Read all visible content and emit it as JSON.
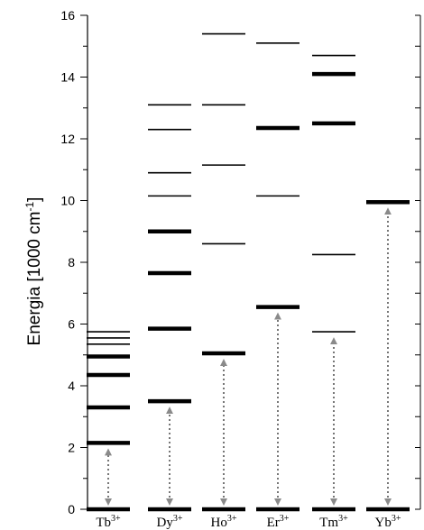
{
  "chart_data": {
    "type": "energy-level-diagram",
    "ylabel": {
      "main": "Energia  [1000 cm",
      "sup": "-1",
      "tail": "]"
    },
    "ylim": [
      0,
      16
    ],
    "yticks": [
      "0",
      "2",
      "4",
      "6",
      "8",
      "10",
      "12",
      "14",
      "16"
    ],
    "minor_tick_step": 1,
    "ions": [
      {
        "base": "Tb",
        "sup": "3+",
        "levels": [
          {
            "e": 0,
            "thick": true
          },
          {
            "e": 2.15,
            "thick": true
          },
          {
            "e": 3.3,
            "thick": true
          },
          {
            "e": 4.35,
            "thick": true
          },
          {
            "e": 4.95,
            "thick": true
          },
          {
            "e": 5.35,
            "thick": false
          },
          {
            "e": 5.55,
            "thick": false
          },
          {
            "e": 5.75,
            "thick": false
          }
        ],
        "transition": {
          "lower": 0,
          "upper": 2.15
        }
      },
      {
        "base": "Dy",
        "sup": "3+",
        "levels": [
          {
            "e": 0,
            "thick": true
          },
          {
            "e": 3.5,
            "thick": true
          },
          {
            "e": 5.85,
            "thick": true
          },
          {
            "e": 7.65,
            "thick": true
          },
          {
            "e": 9.0,
            "thick": true
          },
          {
            "e": 10.15,
            "thick": false
          },
          {
            "e": 10.9,
            "thick": false
          },
          {
            "e": 12.3,
            "thick": false
          },
          {
            "e": 13.1,
            "thick": false
          }
        ],
        "transition": {
          "lower": 0,
          "upper": 3.5
        }
      },
      {
        "base": "Ho",
        "sup": "3+",
        "levels": [
          {
            "e": 0,
            "thick": true
          },
          {
            "e": 5.05,
            "thick": true
          },
          {
            "e": 8.6,
            "thick": false
          },
          {
            "e": 11.15,
            "thick": false
          },
          {
            "e": 13.1,
            "thick": false
          },
          {
            "e": 15.4,
            "thick": false
          }
        ],
        "transition": {
          "lower": 0,
          "upper": 5.05
        }
      },
      {
        "base": "Er",
        "sup": "3+",
        "levels": [
          {
            "e": 0,
            "thick": true
          },
          {
            "e": 6.55,
            "thick": true
          },
          {
            "e": 10.15,
            "thick": false
          },
          {
            "e": 12.35,
            "thick": true
          },
          {
            "e": 15.1,
            "thick": false
          }
        ],
        "transition": {
          "lower": 0,
          "upper": 6.55
        }
      },
      {
        "base": "Tm",
        "sup": "3+",
        "levels": [
          {
            "e": 0,
            "thick": true
          },
          {
            "e": 5.75,
            "thick": false
          },
          {
            "e": 8.25,
            "thick": false
          },
          {
            "e": 12.5,
            "thick": true
          },
          {
            "e": 14.1,
            "thick": true
          },
          {
            "e": 14.7,
            "thick": false
          }
        ],
        "transition": {
          "lower": 0,
          "upper": 5.75
        }
      },
      {
        "base": "Yb",
        "sup": "3+",
        "levels": [
          {
            "e": 0,
            "thick": true
          },
          {
            "e": 9.95,
            "thick": true
          }
        ],
        "transition": {
          "lower": 0,
          "upper": 9.95
        }
      }
    ],
    "colors": {
      "levels": "#000000",
      "axis": "#000000",
      "transition": "#555555",
      "arrowhead": "#8a8a8a"
    }
  }
}
